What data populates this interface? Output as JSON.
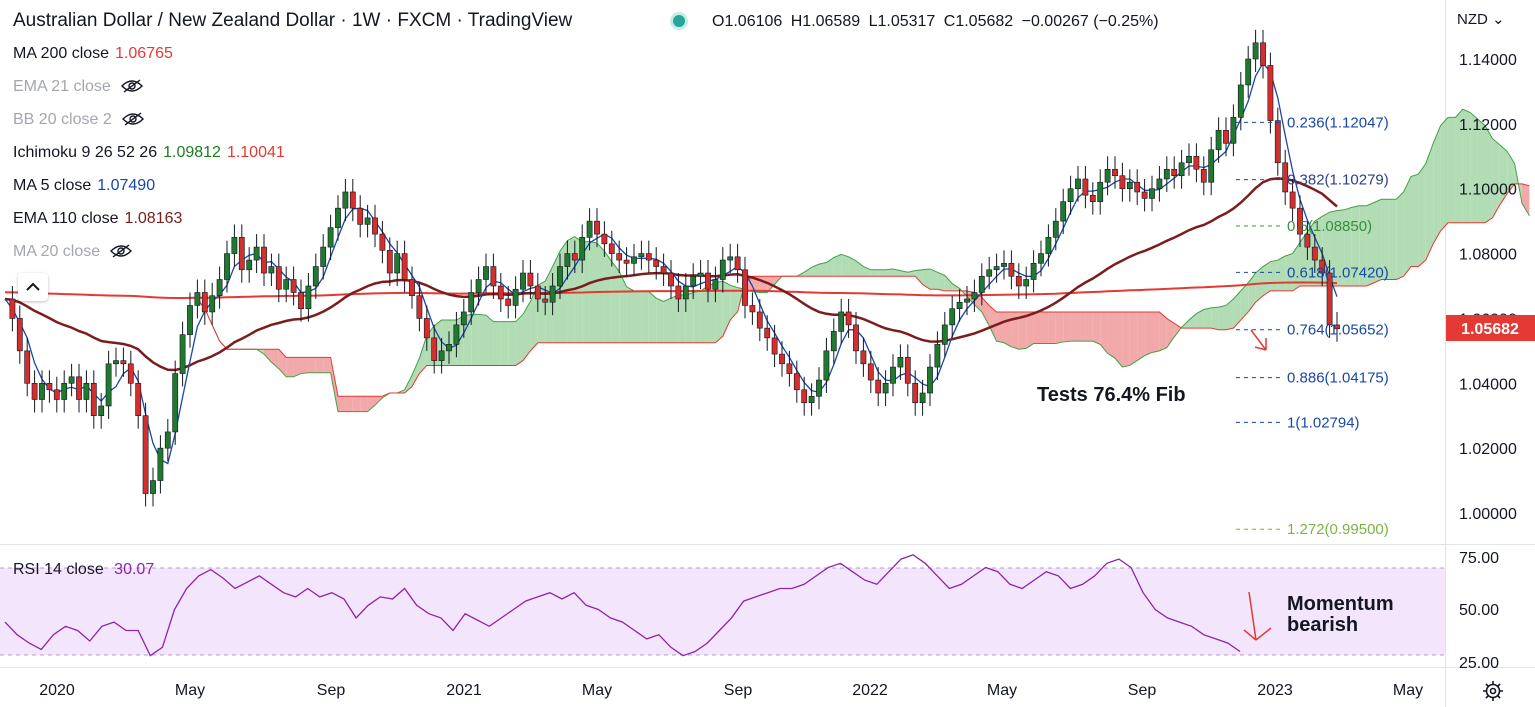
{
  "header": {
    "title": "Australian Dollar / New Zealand Dollar · 1W · FXCM · TradingView",
    "ohlc": {
      "o": "O1.06106",
      "h": "H1.06589",
      "l": "L1.05317",
      "c": "C1.05682",
      "chg": "−0.00267 (−0.25%)"
    },
    "currency": "NZD"
  },
  "indicators": [
    {
      "label": "MA 200 close",
      "value": "1.06765",
      "color": "#e53935",
      "hidden": false
    },
    {
      "label": "EMA 21 close",
      "value": "",
      "color": "#a3a6af",
      "hidden": true
    },
    {
      "label": "BB 20 close 2",
      "value": "",
      "color": "#a3a6af",
      "hidden": true
    },
    {
      "label": "Ichimoku 9 26 52 26",
      "value": "1.09812",
      "value2": "1.10041",
      "color": "#1b7f1b",
      "color2": "#e53935",
      "hidden": false
    },
    {
      "label": "MA 5 close",
      "value": "1.07490",
      "color": "#1848a8",
      "hidden": false
    },
    {
      "label": "EMA 110 close",
      "value": "1.08163",
      "color": "#7b1d1d",
      "hidden": false
    },
    {
      "label": "MA 20 close",
      "value": "",
      "color": "#a3a6af",
      "hidden": true
    }
  ],
  "rsi": {
    "label": "RSI 14 close",
    "value": "30.07",
    "color": "#8e24aa"
  },
  "annotations": {
    "fib_test": "Tests 76.4% Fib",
    "momentum_line1": "Momentum",
    "momentum_line2": "bearish"
  },
  "price_badge": "1.05682",
  "colors": {
    "up": "#26a69a",
    "candle_up": "#1f7a2f",
    "candle_down": "#d32f2f",
    "kumo_up": "#a5d6a7",
    "kumo_down": "#ef9a9a",
    "ma200": "#e53935",
    "ema110": "#7b1d1d",
    "ma5": "#1848a8",
    "rsi": "#8e24aa"
  },
  "chart_data": {
    "type": "candlestick",
    "y_axis": {
      "min": 0.99,
      "max": 1.15,
      "ticks": [
        "1.14000",
        "1.12000",
        "1.10000",
        "1.08000",
        "1.06000",
        "1.04000",
        "1.02000",
        "1.00000"
      ]
    },
    "x_axis": {
      "ticks": [
        "2020",
        "May",
        "Sep",
        "2021",
        "May",
        "Sep",
        "2022",
        "May",
        "Sep",
        "2023",
        "May"
      ]
    },
    "close_path": [
      1.066,
      1.06,
      1.05,
      1.04,
      1.035,
      1.04,
      1.038,
      1.035,
      1.04,
      1.042,
      1.035,
      1.04,
      1.03,
      1.033,
      1.046,
      1.047,
      1.046,
      1.04,
      1.03,
      1.006,
      1.01,
      1.02,
      1.025,
      1.043,
      1.055,
      1.064,
      1.068,
      1.062,
      1.067,
      1.072,
      1.08,
      1.085,
      1.075,
      1.078,
      1.082,
      1.074,
      1.076,
      1.069,
      1.072,
      1.068,
      1.063,
      1.07,
      1.076,
      1.082,
      1.088,
      1.094,
      1.099,
      1.094,
      1.089,
      1.091,
      1.086,
      1.081,
      1.074,
      1.08,
      1.072,
      1.067,
      1.06,
      1.054,
      1.047,
      1.05,
      1.052,
      1.058,
      1.062,
      1.068,
      1.072,
      1.076,
      1.07,
      1.066,
      1.064,
      1.069,
      1.074,
      1.07,
      1.066,
      1.065,
      1.07,
      1.076,
      1.08,
      1.078,
      1.085,
      1.09,
      1.086,
      1.083,
      1.08,
      1.078,
      1.077,
      1.079,
      1.08,
      1.078,
      1.076,
      1.074,
      1.07,
      1.066,
      1.07,
      1.073,
      1.074,
      1.069,
      1.072,
      1.078,
      1.079,
      1.075,
      1.064,
      1.062,
      1.057,
      1.054,
      1.049,
      1.046,
      1.043,
      1.038,
      1.034,
      1.036,
      1.041,
      1.05,
      1.056,
      1.062,
      1.058,
      1.05,
      1.046,
      1.041,
      1.037,
      1.04,
      1.045,
      1.048,
      1.04,
      1.034,
      1.037,
      1.045,
      1.052,
      1.058,
      1.063,
      1.065,
      1.066,
      1.068,
      1.073,
      1.075,
      1.076,
      1.077,
      1.073,
      1.07,
      1.072,
      1.077,
      1.08,
      1.085,
      1.09,
      1.096,
      1.1,
      1.103,
      1.098,
      1.096,
      1.102,
      1.106,
      1.104,
      1.1,
      1.102,
      1.099,
      1.097,
      1.1,
      1.103,
      1.106,
      1.104,
      1.108,
      1.11,
      1.106,
      1.102,
      1.112,
      1.118,
      1.114,
      1.122,
      1.132,
      1.14,
      1.145,
      1.138,
      1.121,
      1.108,
      1.099,
      1.094,
      1.086,
      1.082,
      1.078,
      1.074,
      1.058,
      1.0568
    ],
    "fibonacci": [
      {
        "label": "0.236(1.12047)",
        "level": 1.12047,
        "color": "#1848a8"
      },
      {
        "label": "0.382(1.10279)",
        "level": 1.10279,
        "color": "#2e3f8c"
      },
      {
        "label": "0.5(1.08850)",
        "level": 1.0885,
        "color": "#388e3c"
      },
      {
        "label": "0.618(1.07420)",
        "level": 1.0742,
        "color": "#1848a8"
      },
      {
        "label": "0.764(1.05652)",
        "level": 1.05652,
        "color": "#1848a8"
      },
      {
        "label": "0.886(1.04175)",
        "level": 1.04175,
        "color": "#1848a8"
      },
      {
        "label": "1(1.02794)",
        "level": 1.02794,
        "color": "#1848a8"
      },
      {
        "label": "1.272(0.99500)",
        "level": 0.995,
        "color": "#7cb342"
      }
    ],
    "rsi": {
      "y_ticks": [
        "75.00",
        "50.00",
        "25.00"
      ],
      "upper": 70,
      "lower": 30,
      "values": [
        44,
        38,
        34,
        31,
        38,
        42,
        40,
        35,
        42,
        44,
        40,
        40,
        28,
        32,
        50,
        60,
        66,
        69,
        65,
        60,
        63,
        66,
        62,
        58,
        56,
        60,
        56,
        58,
        55,
        46,
        52,
        56,
        55,
        60,
        52,
        48,
        46,
        40,
        48,
        45,
        42,
        46,
        50,
        54,
        56,
        58,
        55,
        58,
        52,
        50,
        46,
        44,
        40,
        36,
        38,
        32,
        28,
        30,
        34,
        40,
        46,
        54,
        56,
        58,
        60,
        60,
        62,
        66,
        70,
        72,
        68,
        64,
        62,
        68,
        74,
        76,
        72,
        66,
        60,
        62,
        66,
        70,
        68,
        62,
        60,
        64,
        68,
        66,
        60,
        62,
        66,
        72,
        74,
        70,
        58,
        50,
        46,
        44,
        42,
        38,
        36,
        34,
        30
      ]
    }
  }
}
